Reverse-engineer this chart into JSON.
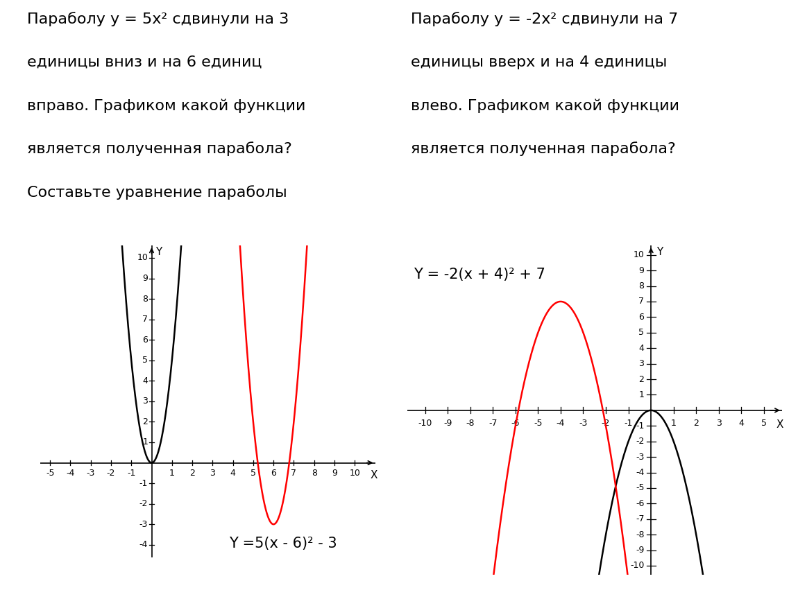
{
  "left_text_line1": "Параболу у = 5х² сдвинули на 3",
  "left_text_line2": "единицы вниз и на 6 единиц",
  "left_text_line3": "вправо. Графиком какой функции",
  "left_text_line4": "является полученная парабола?",
  "left_text_line5": "Составьте уравнение параболы",
  "right_text_line1": "Параболу у = -2х² сдвинули на 7",
  "right_text_line2": "единицы вверх и на 4 единицы",
  "right_text_line3": "влево. Графиком какой функции",
  "right_text_line4": "является полученная парабола?",
  "left_formula": "Y =5(x - 6)² - 3",
  "right_formula": "Y = -2(x + 4)² + 7",
  "left_xlim": [
    -5.5,
    11.0
  ],
  "left_ylim": [
    -4.6,
    10.6
  ],
  "left_xticks": [
    -5,
    -4,
    -3,
    -2,
    -1,
    1,
    2,
    3,
    4,
    5,
    6,
    7,
    8,
    9,
    10
  ],
  "left_yticks": [
    -4,
    -3,
    -2,
    -1,
    1,
    2,
    3,
    4,
    5,
    6,
    7,
    8,
    9,
    10
  ],
  "right_xlim": [
    -10.8,
    5.8
  ],
  "right_ylim": [
    -10.6,
    10.6
  ],
  "right_xticks": [
    -10,
    -9,
    -8,
    -7,
    -6,
    -5,
    -4,
    -3,
    -2,
    -1,
    1,
    2,
    3,
    4,
    5
  ],
  "right_yticks": [
    -10,
    -9,
    -8,
    -7,
    -6,
    -5,
    -4,
    -3,
    -2,
    -1,
    1,
    2,
    3,
    4,
    5,
    6,
    7,
    8,
    9,
    10
  ],
  "black_color": "#000000",
  "red_color": "#ff0000",
  "bg_color": "#ffffff",
  "text_fontsize": 16,
  "formula_fontsize": 15,
  "axis_fontsize": 9,
  "tick_label_fontsize": 9
}
